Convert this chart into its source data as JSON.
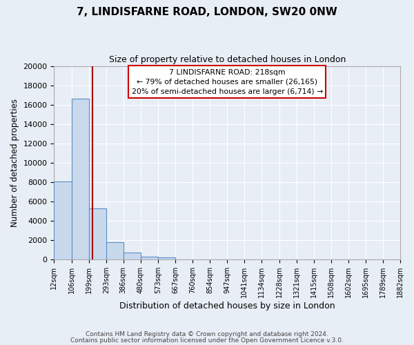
{
  "title": "7, LINDISFARNE ROAD, LONDON, SW20 0NW",
  "subtitle": "Size of property relative to detached houses in London",
  "xlabel": "Distribution of detached houses by size in London",
  "ylabel": "Number of detached properties",
  "footer_lines": [
    "Contains HM Land Registry data © Crown copyright and database right 2024.",
    "Contains public sector information licensed under the Open Government Licence v.3.0."
  ],
  "bar_edges": [
    12,
    106,
    199,
    293,
    386,
    480,
    573,
    667,
    760,
    854,
    947,
    1041,
    1134,
    1228,
    1321,
    1415,
    1508,
    1602,
    1695,
    1789,
    1882
  ],
  "bar_heights": [
    8100,
    16600,
    5300,
    1800,
    700,
    300,
    200,
    0,
    0,
    0,
    0,
    0,
    0,
    0,
    0,
    0,
    0,
    0,
    0,
    0
  ],
  "tick_labels": [
    "12sqm",
    "106sqm",
    "199sqm",
    "293sqm",
    "386sqm",
    "480sqm",
    "573sqm",
    "667sqm",
    "760sqm",
    "854sqm",
    "947sqm",
    "1041sqm",
    "1134sqm",
    "1228sqm",
    "1321sqm",
    "1415sqm",
    "1508sqm",
    "1602sqm",
    "1695sqm",
    "1789sqm",
    "1882sqm"
  ],
  "bar_color": "#c9d9ec",
  "bar_edge_color": "#5b8cc8",
  "property_size": 218,
  "annotation_line1": "7 LINDISFARNE ROAD: 218sqm",
  "annotation_line2": "← 79% of detached houses are smaller (26,165)",
  "annotation_line3": "20% of semi-detached houses are larger (6,714) →",
  "vline_color": "#aa0000",
  "ylim": [
    0,
    20000
  ],
  "yticks": [
    0,
    2000,
    4000,
    6000,
    8000,
    10000,
    12000,
    14000,
    16000,
    18000,
    20000
  ],
  "bg_color": "#e8eef5",
  "plot_bg_color": "#e8eef5",
  "grid_color": "#ffffff"
}
